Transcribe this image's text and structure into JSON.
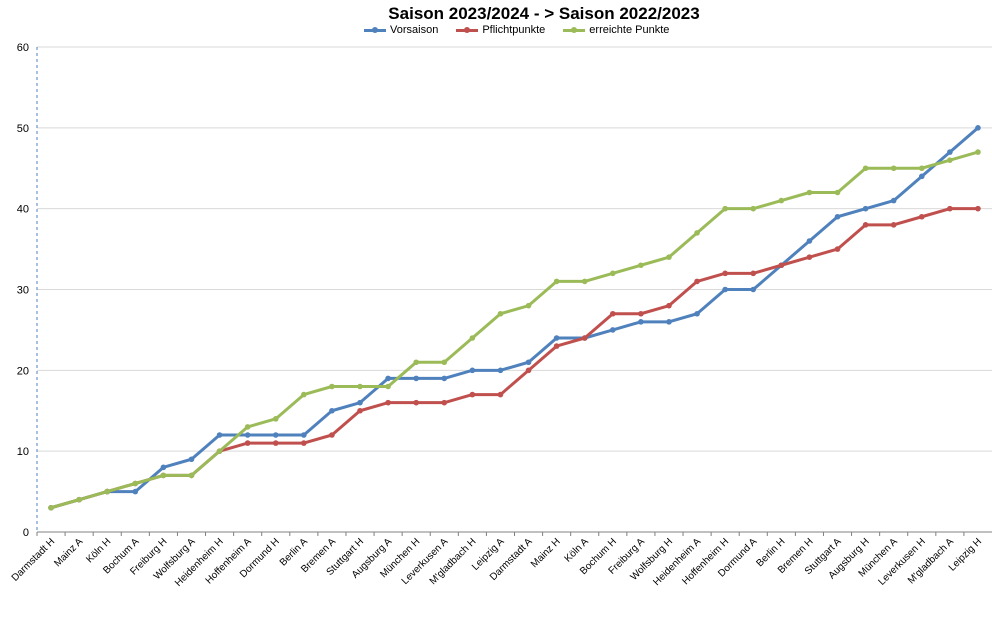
{
  "chart_data": {
    "type": "line",
    "title": "Saison 2023/2024 - > Saison 2022/2023",
    "xlabel": "",
    "ylabel": "",
    "ylim": [
      0,
      60
    ],
    "yticks": [
      0,
      10,
      20,
      30,
      40,
      50,
      60
    ],
    "grid": true,
    "legend_position": "top",
    "categories": [
      "Darmstadt H",
      "Mainz A",
      "Köln H",
      "Bochum A",
      "Freiburg H",
      "Wolfsburg A",
      "Heidenheim H",
      "Hoffenheim A",
      "Dormund H",
      "Berlin A",
      "Bremen A",
      "Stuttgart H",
      "Augsburg A",
      "München H",
      "Leverkusen A",
      "M'gladbach H",
      "Leipzig A",
      "Darmstadt A",
      "Mainz H",
      "Köln A",
      "Bochum H",
      "Freiburg A",
      "Wolfsburg H",
      "Heidenheim A",
      "Hoffenheim H",
      "Dormund A",
      "Berlin H",
      "Bremen H",
      "Stuttgart A",
      "Augsburg H",
      "München A",
      "Leverkusen H",
      "M'gladbach A",
      "Leipzig H"
    ],
    "series": [
      {
        "name": "Vorsaison",
        "color": "#4f81bd",
        "values": [
          3,
          4,
          5,
          5,
          8,
          9,
          12,
          12,
          12,
          12,
          15,
          16,
          19,
          19,
          19,
          20,
          20,
          21,
          24,
          24,
          25,
          26,
          26,
          27,
          30,
          30,
          33,
          36,
          39,
          40,
          41,
          44,
          47,
          50
        ]
      },
      {
        "name": "Pflichtpunkte",
        "color": "#c0504d",
        "values": [
          3,
          4,
          5,
          6,
          7,
          7,
          10,
          11,
          11,
          11,
          12,
          15,
          16,
          16,
          16,
          17,
          17,
          20,
          23,
          24,
          27,
          27,
          28,
          31,
          32,
          32,
          33,
          34,
          35,
          38,
          38,
          39,
          40,
          40
        ]
      },
      {
        "name": "erreichte Punkte",
        "color": "#9bbb59",
        "values": [
          3,
          4,
          5,
          6,
          7,
          7,
          10,
          13,
          14,
          17,
          18,
          18,
          18,
          21,
          21,
          24,
          27,
          28,
          31,
          31,
          32,
          33,
          34,
          37,
          40,
          40,
          41,
          42,
          42,
          45,
          45,
          45,
          46,
          47
        ]
      }
    ]
  }
}
